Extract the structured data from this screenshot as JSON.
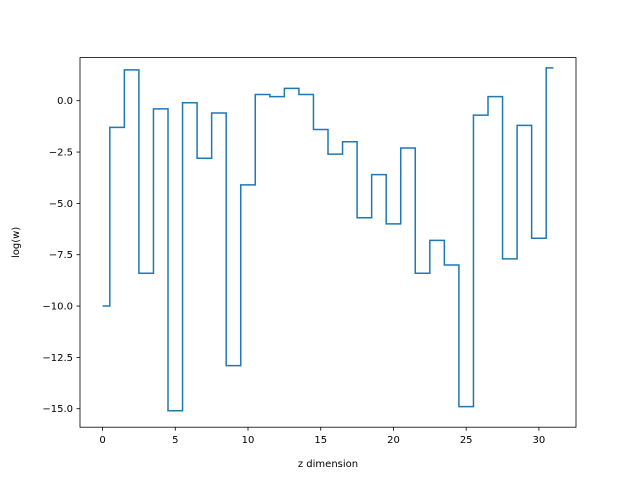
{
  "chart_data": {
    "type": "line",
    "drawstyle": "steps-mid",
    "title": "",
    "xlabel": "z dimension",
    "ylabel": "log(w)",
    "xlim": [
      -1.55,
      32.55
    ],
    "ylim": [
      -15.9,
      2.1
    ],
    "xticks": [
      0,
      5,
      10,
      15,
      20,
      25,
      30
    ],
    "xtick_labels": [
      "0",
      "5",
      "10",
      "15",
      "20",
      "25",
      "30"
    ],
    "yticks": [
      0,
      -2.5,
      -5,
      -7.5,
      -10,
      -12.5,
      -15
    ],
    "ytick_labels": [
      "0.0",
      "−2.5",
      "−5.0",
      "−7.5",
      "−10.0",
      "−12.5",
      "−15.0"
    ],
    "grid": false,
    "legend": "none",
    "line_color": "#1f77b4",
    "series": [
      {
        "x": [
          0,
          1,
          2,
          3,
          4,
          5,
          6,
          7,
          8,
          9,
          10,
          11,
          12,
          13,
          14,
          15,
          16,
          17,
          18,
          19,
          20,
          21,
          22,
          23,
          24,
          25,
          26,
          27,
          28,
          29,
          30,
          31
        ],
        "values": [
          -10.0,
          -1.3,
          1.5,
          -8.4,
          -0.4,
          -15.1,
          -0.1,
          -2.8,
          -0.6,
          -12.9,
          -4.1,
          0.3,
          0.2,
          0.6,
          0.3,
          -1.4,
          -2.6,
          -2.0,
          -5.7,
          -3.6,
          -6.0,
          -2.3,
          -8.4,
          -6.8,
          -8.0,
          -14.9,
          -0.7,
          0.2,
          -7.7,
          -1.2,
          -6.7,
          1.6
        ]
      }
    ]
  }
}
